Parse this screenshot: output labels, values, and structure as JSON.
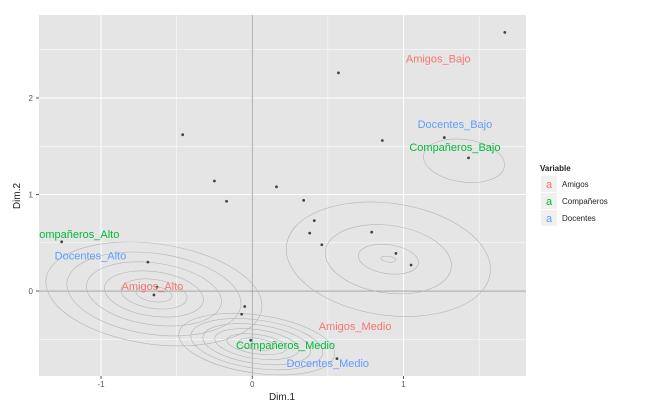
{
  "chart_data": {
    "type": "scatter",
    "title": "",
    "xlabel": "Dim.1",
    "ylabel": "Dim.2",
    "xlim": [
      -1.41,
      1.81
    ],
    "ylim": [
      -0.88,
      2.86
    ],
    "x_ticks": [
      {
        "value": -1,
        "label": "-1"
      },
      {
        "value": 0,
        "label": "0"
      },
      {
        "value": 1,
        "label": "1"
      }
    ],
    "y_ticks": [
      {
        "value": 0,
        "label": "0"
      },
      {
        "value": 1,
        "label": "1"
      },
      {
        "value": 2,
        "label": "2"
      }
    ],
    "grid": true,
    "reference_lines": {
      "x": 0,
      "y": 0
    },
    "points": [
      [
        1.67,
        2.68
      ],
      [
        0.57,
        2.26
      ],
      [
        0.86,
        1.56
      ],
      [
        -0.46,
        1.62
      ],
      [
        1.27,
        1.59
      ],
      [
        1.43,
        1.38
      ],
      [
        -0.25,
        1.14
      ],
      [
        -0.17,
        0.93
      ],
      [
        0.16,
        1.08
      ],
      [
        0.34,
        0.94
      ],
      [
        0.41,
        0.73
      ],
      [
        0.38,
        0.6
      ],
      [
        0.46,
        0.48
      ],
      [
        0.79,
        0.61
      ],
      [
        0.95,
        0.39
      ],
      [
        1.05,
        0.27
      ],
      [
        -1.26,
        0.51
      ],
      [
        -0.69,
        0.3
      ],
      [
        -0.63,
        0.04
      ],
      [
        -0.65,
        -0.04
      ],
      [
        -0.05,
        -0.16
      ],
      [
        -0.07,
        -0.24
      ],
      [
        -0.01,
        -0.51
      ],
      [
        0.56,
        -0.7
      ]
    ],
    "labels": [
      {
        "text": "Amigos_Bajo",
        "x": 1.23,
        "y": 2.41,
        "group": "Amigos"
      },
      {
        "text": "Docentes_Bajo",
        "x": 1.34,
        "y": 1.73,
        "group": "Docentes"
      },
      {
        "text": "Compañeros_Bajo",
        "x": 1.34,
        "y": 1.49,
        "group": "Compañeros"
      },
      {
        "text": "Compañeros_Alto",
        "x": -1.17,
        "y": 0.59,
        "group": "Compañeros"
      },
      {
        "text": "Docentes_Alto",
        "x": -1.07,
        "y": 0.37,
        "group": "Docentes"
      },
      {
        "text": "Amigos_Alto",
        "x": -0.66,
        "y": 0.05,
        "group": "Amigos"
      },
      {
        "text": "Amigos_Medio",
        "x": 0.68,
        "y": -0.36,
        "group": "Amigos"
      },
      {
        "text": "Compañeros_Medio",
        "x": 0.22,
        "y": -0.56,
        "group": "Compañeros"
      },
      {
        "text": "Docentes_Medio",
        "x": 0.42,
        "y": -0.59,
        "group": "Docentes"
      }
    ],
    "density_contours": [
      {
        "cx": 0.9,
        "cy": 0.33,
        "rx": [
          0.05,
          0.2,
          0.42,
          0.68
        ],
        "ry": [
          0.03,
          0.15,
          0.35,
          0.58
        ]
      },
      {
        "cx": 1.4,
        "cy": 1.35,
        "rx": [
          0.27
        ],
        "ry": [
          0.22
        ]
      },
      {
        "cx": -0.65,
        "cy": -0.03,
        "rx": [
          0.12,
          0.22,
          0.33,
          0.45,
          0.58,
          0.72
        ],
        "ry": [
          0.08,
          0.15,
          0.23,
          0.32,
          0.42,
          0.52
        ]
      },
      {
        "cx": 0.03,
        "cy": -0.55,
        "rx": [
          0.12,
          0.2,
          0.28,
          0.36,
          0.44,
          0.52
        ],
        "ry": [
          0.06,
          0.1,
          0.15,
          0.2,
          0.25,
          0.3
        ]
      }
    ],
    "legend": {
      "title": "Variable",
      "position": "right",
      "entries": [
        {
          "label": "Amigos",
          "key": "a",
          "color": "#F8766D"
        },
        {
          "label": "Compañeros",
          "key": "a",
          "color": "#00BA38"
        },
        {
          "label": "Docentes",
          "key": "a",
          "color": "#619CFF"
        }
      ]
    }
  }
}
